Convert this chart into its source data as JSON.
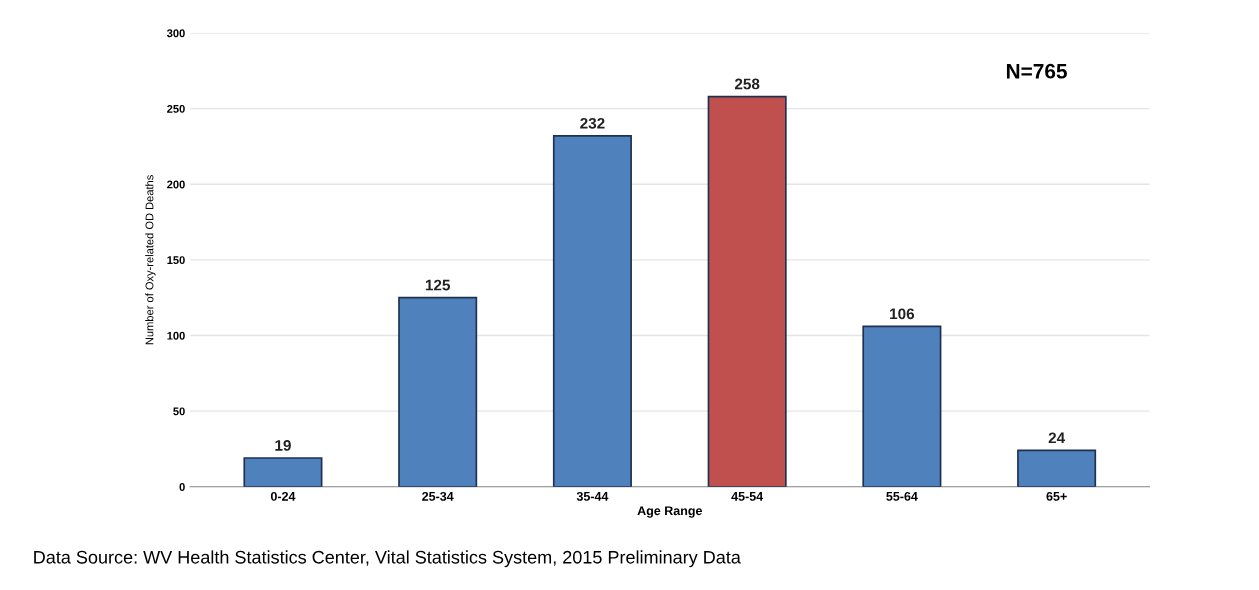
{
  "chart_data": {
    "type": "bar",
    "xlabel": "Age Range",
    "ylabel": "Number of Oxy-related OD Deaths",
    "categories": [
      "0-24",
      "25-34",
      "35-44",
      "45-54",
      "55-64",
      "65+"
    ],
    "values": [
      19,
      125,
      232,
      258,
      106,
      24
    ],
    "colors": [
      "#4f81bd",
      "#4f81bd",
      "#4f81bd",
      "#c0504d",
      "#4f81bd",
      "#4f81bd"
    ],
    "ylim": [
      0,
      300
    ],
    "yticks": [
      0,
      50,
      100,
      150,
      200,
      250,
      300
    ],
    "grid": "y",
    "data_labels": true,
    "annotations": [
      "N=765",
      "Data Source: WV Health Statistics Center, Vital Statistics System, 2015 Preliminary Data"
    ]
  }
}
